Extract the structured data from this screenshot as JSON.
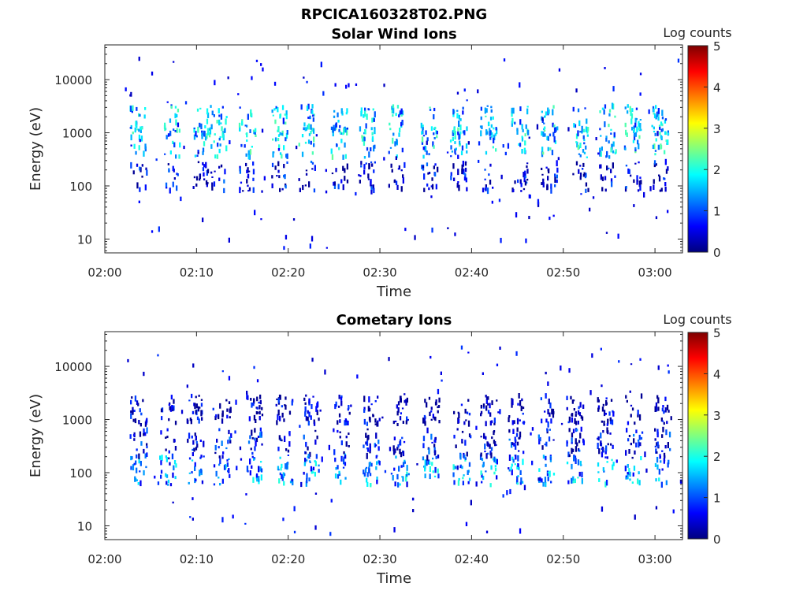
{
  "figure_title": "RPCICA160328T02.PNG",
  "chart_data": [
    {
      "type": "heatmap",
      "title": "Solar Wind Ions",
      "xlabel": "Time",
      "ylabel": "Energy (eV)",
      "x_ticks": [
        "02:00",
        "02:10",
        "02:20",
        "02:30",
        "02:40",
        "02:50",
        "03:00"
      ],
      "x_range_minutes": [
        0,
        63
      ],
      "y_scale": "log",
      "y_range": [
        5.5,
        45000
      ],
      "y_ticks": [
        10,
        100,
        1000,
        10000
      ],
      "y_tick_labels": [
        "10",
        "100",
        "1000",
        "10000"
      ],
      "colorbar": {
        "label": "Log counts",
        "range": [
          0,
          5
        ],
        "ticks": [
          "0",
          "1",
          "2",
          "3",
          "4",
          "5"
        ],
        "colormap": "jet"
      },
      "bands": [
        {
          "energy": 650,
          "log_count": 1.6
        },
        {
          "energy": 1700,
          "log_count": 1.5
        },
        {
          "energy": 150,
          "log_count": 0.4
        }
      ],
      "clusters_minutes": [
        3.6,
        7.2,
        10.5,
        12.3,
        15.5,
        19.0,
        22.0,
        25.5,
        28.5,
        31.8,
        35.3,
        38.5,
        41.8,
        45.2,
        48.4,
        51.8,
        54.8,
        57.5,
        60.5
      ]
    },
    {
      "type": "heatmap",
      "title": "Cometary Ions",
      "xlabel": "Time",
      "ylabel": "Energy (eV)",
      "x_ticks": [
        "02:00",
        "02:10",
        "02:20",
        "02:30",
        "02:40",
        "02:50",
        "03:00"
      ],
      "x_range_minutes": [
        0,
        63
      ],
      "y_scale": "log",
      "y_range": [
        5.5,
        45000
      ],
      "y_ticks": [
        10,
        100,
        1000,
        10000
      ],
      "y_tick_labels": [
        "10",
        "100",
        "1000",
        "10000"
      ],
      "colorbar": {
        "label": "Log counts",
        "range": [
          0,
          5
        ],
        "ticks": [
          "0",
          "1",
          "2",
          "3",
          "4",
          "5"
        ],
        "colormap": "jet"
      },
      "bands": [
        {
          "energy": 110,
          "log_count": 1.3
        },
        {
          "energy": 350,
          "log_count": 0.5
        },
        {
          "energy": 1500,
          "log_count": 0.2
        }
      ],
      "clusters_minutes": [
        3.6,
        6.8,
        9.8,
        12.8,
        16.2,
        19.5,
        22.5,
        25.8,
        29.0,
        32.2,
        35.5,
        38.8,
        41.8,
        44.8,
        48.0,
        51.2,
        54.5,
        57.6,
        60.8
      ]
    }
  ]
}
